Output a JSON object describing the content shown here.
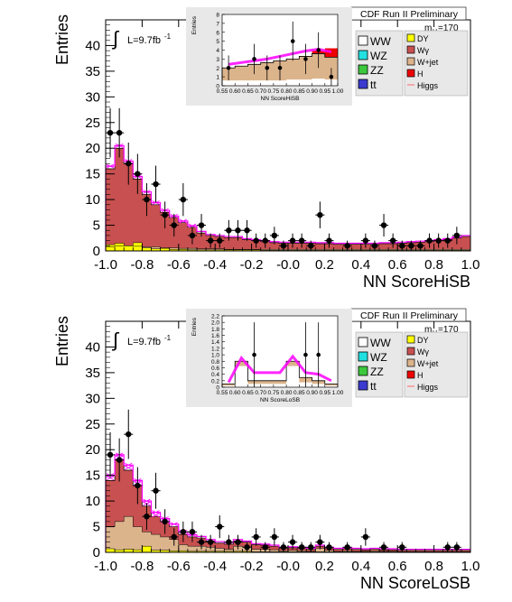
{
  "colors": {
    "WW": "#ffffff",
    "WZ": "#22e0e0",
    "ZZ": "#3cc83c",
    "tt": "#3b3bd0",
    "DY": "#ffff00",
    "Wgamma": "#c85050",
    "Wjet": "#dcb48c",
    "H": "#ee0000",
    "Higgs": "#ff00ff",
    "data": "#000000"
  },
  "chart_data": [
    {
      "type": "histogram",
      "header": "CDF Run II Preliminary",
      "mass_label": "m",
      "mass_sub": "H",
      "mass_value": "=170",
      "lumi": "L=9.7fb",
      "lumi_sup": "-1",
      "integral_symbol": "∫",
      "xlabel": "NN ScoreHiSB",
      "ylabel": "Entries",
      "xlim": [
        -1.0,
        1.0
      ],
      "ylim": [
        0,
        45
      ],
      "x_ticks": [
        "-1.0",
        "-0.8",
        "-0.6",
        "-0.4",
        "-0.2",
        "-0.0",
        "0.2",
        "0.4",
        "0.6",
        "0.8",
        "1.0"
      ],
      "y_ticks": [
        "0",
        "5",
        "10",
        "15",
        "20",
        "25",
        "30",
        "35",
        "40"
      ],
      "legend_left": [
        "WW",
        "WZ",
        "ZZ",
        "tt"
      ],
      "legend_right": [
        "DY",
        "Wγ",
        "W+jet",
        "H",
        "Higgs"
      ],
      "bin_width": 0.05,
      "bins_x": [
        -1.0,
        -0.95,
        -0.9,
        -0.85,
        -0.8,
        -0.75,
        -0.7,
        -0.65,
        -0.6,
        -0.55,
        -0.5,
        -0.45,
        -0.4,
        -0.35,
        -0.3,
        -0.25,
        -0.2,
        -0.15,
        -0.1,
        -0.05,
        0.0,
        0.05,
        0.1,
        0.15,
        0.2,
        0.25,
        0.3,
        0.35,
        0.4,
        0.45,
        0.5,
        0.55,
        0.6,
        0.65,
        0.7,
        0.75,
        0.8,
        0.85,
        0.9,
        0.95
      ],
      "stack_total": [
        16,
        20,
        17,
        14,
        11,
        9,
        7.5,
        6.5,
        5.5,
        4.6,
        3.5,
        3,
        2.8,
        2.6,
        2.6,
        2.2,
        2,
        1.8,
        1.6,
        1.5,
        1.5,
        1.5,
        1.5,
        1.4,
        1.4,
        1.3,
        1.3,
        1.3,
        1.3,
        1.3,
        1.4,
        1.4,
        1.5,
        1.6,
        1.7,
        1.8,
        2,
        2.2,
        2.5,
        2.8
      ],
      "stack_wjet": [
        0.8,
        1.0,
        1.0,
        0.9,
        0.8,
        0.8,
        0.6,
        0.6,
        0.5,
        0.5,
        0.4,
        0.4,
        0.4,
        0.3,
        0.3,
        0.3,
        0.3,
        0.3,
        0.3,
        0.3,
        0.3,
        0.3,
        0.3,
        0.3,
        0.3,
        0.3,
        0.3,
        0.3,
        0.3,
        0.3,
        0.3,
        0.3,
        0.3,
        0.3,
        0.3,
        0.3,
        0.3,
        0.3,
        0.3,
        0.3
      ],
      "stack_dy": [
        1.2,
        1.5,
        1.0,
        1.6,
        0.6,
        0.4,
        0.5,
        0.3,
        0.3,
        0.2,
        0.2,
        0.2,
        0.2,
        0.2,
        0.2,
        0.2,
        0.2,
        0.1,
        0.1,
        0.1,
        0.1,
        0.1,
        0.1,
        0.1,
        0.1,
        0.1,
        0.1,
        0.1,
        0.1,
        0.1,
        0.1,
        0.1,
        0.1,
        0.1,
        0.1,
        0.1,
        0.1,
        0.1,
        0.1,
        0.1
      ],
      "higgs": [
        16.5,
        20.5,
        17.5,
        14.5,
        11.5,
        9.4,
        7.9,
        6.8,
        5.8,
        4.9,
        3.8,
        3.2,
        3,
        2.8,
        2.8,
        2.4,
        2.2,
        2,
        1.8,
        1.7,
        1.7,
        1.7,
        1.7,
        1.6,
        1.6,
        1.5,
        1.5,
        1.5,
        1.5,
        1.5,
        1.6,
        1.6,
        1.7,
        1.8,
        1.9,
        2.0,
        2.2,
        2.4,
        2.7,
        3.0
      ],
      "data_points": [
        {
          "x": -0.975,
          "y": 23,
          "err": 4.8
        },
        {
          "x": -0.925,
          "y": 23,
          "err": 4.8
        },
        {
          "x": -0.875,
          "y": 17,
          "err": 4.1
        },
        {
          "x": -0.825,
          "y": 15,
          "err": 3.9
        },
        {
          "x": -0.775,
          "y": 10,
          "err": 3.2
        },
        {
          "x": -0.725,
          "y": 13,
          "err": 3.6
        },
        {
          "x": -0.675,
          "y": 7,
          "err": 2.6
        },
        {
          "x": -0.625,
          "y": 5,
          "err": 2.2
        },
        {
          "x": -0.575,
          "y": 10,
          "err": 3.2
        },
        {
          "x": -0.525,
          "y": 3,
          "err": 1.7
        },
        {
          "x": -0.475,
          "y": 5,
          "err": 2.2
        },
        {
          "x": -0.425,
          "y": 2,
          "err": 1.4
        },
        {
          "x": -0.375,
          "y": 2,
          "err": 1.4
        },
        {
          "x": -0.325,
          "y": 4,
          "err": 2.0
        },
        {
          "x": -0.275,
          "y": 4,
          "err": 2.0
        },
        {
          "x": -0.225,
          "y": 4,
          "err": 2.0
        },
        {
          "x": -0.175,
          "y": 2,
          "err": 1.4
        },
        {
          "x": -0.125,
          "y": 2,
          "err": 1.4
        },
        {
          "x": -0.075,
          "y": 3,
          "err": 1.7
        },
        {
          "x": -0.025,
          "y": 1,
          "err": 1.0
        },
        {
          "x": 0.025,
          "y": 2,
          "err": 1.4
        },
        {
          "x": 0.075,
          "y": 2,
          "err": 1.4
        },
        {
          "x": 0.125,
          "y": 1,
          "err": 1.0
        },
        {
          "x": 0.175,
          "y": 7,
          "err": 2.6
        },
        {
          "x": 0.225,
          "y": 2,
          "err": 1.4
        },
        {
          "x": 0.325,
          "y": 1,
          "err": 1.0
        },
        {
          "x": 0.425,
          "y": 2,
          "err": 1.4
        },
        {
          "x": 0.475,
          "y": 1,
          "err": 1.0
        },
        {
          "x": 0.525,
          "y": 5,
          "err": 2.2
        },
        {
          "x": 0.575,
          "y": 2,
          "err": 1.4
        },
        {
          "x": 0.625,
          "y": 1,
          "err": 1.0
        },
        {
          "x": 0.675,
          "y": 1,
          "err": 1.0
        },
        {
          "x": 0.725,
          "y": 1,
          "err": 1.0
        },
        {
          "x": 0.775,
          "y": 2,
          "err": 1.4
        },
        {
          "x": 0.825,
          "y": 2,
          "err": 1.4
        },
        {
          "x": 0.875,
          "y": 2,
          "err": 1.4
        },
        {
          "x": 0.925,
          "y": 3,
          "err": 1.7
        }
      ],
      "inset": {
        "xlabel": "NN ScoreHiSB",
        "ylabel": "Entries",
        "xlim": [
          0.55,
          1.0
        ],
        "ylim": [
          0,
          8
        ],
        "x_ticks": [
          "0.55",
          "0.60",
          "0.65",
          "0.70",
          "0.75",
          "0.80",
          "0.85",
          "0.90",
          "0.95",
          "1.00"
        ],
        "y_ticks": [
          "0",
          "1",
          "2",
          "3",
          "4",
          "5",
          "6",
          "7",
          "8"
        ],
        "bins_x": [
          0.55,
          0.6,
          0.65,
          0.7,
          0.75,
          0.8,
          0.85,
          0.9,
          0.95
        ],
        "stack_total": [
          2.0,
          2.2,
          2.4,
          2.6,
          2.8,
          3.0,
          3.3,
          3.6,
          3.2
        ],
        "stack_wjet": [
          0.6,
          0.6,
          0.6,
          0.6,
          0.6,
          0.7,
          0.7,
          0.8,
          0.7
        ],
        "higgs": [
          2.4,
          2.6,
          2.8,
          3.0,
          3.3,
          3.6,
          3.9,
          4.1,
          3.8
        ],
        "red_top": [
          0,
          0,
          0,
          0,
          0,
          0,
          0,
          0.3,
          1.0
        ],
        "data_points": [
          {
            "x": 0.575,
            "y": 2,
            "err": 1.4
          },
          {
            "x": 0.675,
            "y": 3,
            "err": 1.7
          },
          {
            "x": 0.725,
            "y": 2,
            "err": 1.4
          },
          {
            "x": 0.775,
            "y": 2,
            "err": 1.4
          },
          {
            "x": 0.825,
            "y": 5,
            "err": 2.2
          },
          {
            "x": 0.875,
            "y": 3,
            "err": 1.7
          },
          {
            "x": 0.925,
            "y": 4,
            "err": 2.0
          },
          {
            "x": 0.975,
            "y": 1,
            "err": 1.0
          }
        ]
      }
    },
    {
      "type": "histogram",
      "header": "CDF Run II Preliminary",
      "mass_label": "m",
      "mass_sub": "H",
      "mass_value": "=170",
      "lumi": "L=9.7fb",
      "lumi_sup": "-1",
      "integral_symbol": "∫",
      "xlabel": "NN ScoreLoSB",
      "ylabel": "Entries",
      "xlim": [
        -1.0,
        1.0
      ],
      "ylim": [
        0,
        45
      ],
      "x_ticks": [
        "-1.0",
        "-0.8",
        "-0.6",
        "-0.4",
        "-0.2",
        "-0.0",
        "0.2",
        "0.4",
        "0.6",
        "0.8",
        "1.0"
      ],
      "y_ticks": [
        "0",
        "5",
        "10",
        "15",
        "20",
        "25",
        "30",
        "35",
        "40"
      ],
      "legend_left": [
        "WW",
        "WZ",
        "ZZ",
        "tt"
      ],
      "legend_right": [
        "DY",
        "Wγ",
        "W+jet",
        "H",
        "Higgs"
      ],
      "bin_width": 0.05,
      "bins_x": [
        -1.0,
        -0.95,
        -0.9,
        -0.85,
        -0.8,
        -0.75,
        -0.7,
        -0.65,
        -0.6,
        -0.55,
        -0.5,
        -0.45,
        -0.4,
        -0.35,
        -0.3,
        -0.25,
        -0.2,
        -0.15,
        -0.1,
        -0.05,
        0.0,
        0.05,
        0.1,
        0.15,
        0.2,
        0.25,
        0.3,
        0.35,
        0.4,
        0.45,
        0.5,
        0.55,
        0.6,
        0.65,
        0.7,
        0.75,
        0.8,
        0.85,
        0.9,
        0.95
      ],
      "stack_total": [
        14,
        18,
        16,
        13,
        9,
        7,
        6,
        5,
        3.5,
        3,
        2.8,
        2.2,
        1.8,
        1.6,
        2.2,
        2,
        1.5,
        1.4,
        1.2,
        0.8,
        0.9,
        0.8,
        0.6,
        1.2,
        0.8,
        0.6,
        0.7,
        0.6,
        0.5,
        0.6,
        0.5,
        0.5,
        0.4,
        0.4,
        0.4,
        0.4,
        0.4,
        0.4,
        0.4,
        0.4
      ],
      "stack_wjet": [
        5,
        6,
        7,
        5,
        4,
        3.5,
        3,
        2.5,
        1.5,
        1.2,
        1.2,
        1,
        0.8,
        0.6,
        1.2,
        1,
        0.6,
        0.6,
        0.5,
        0.3,
        0.4,
        0.3,
        0.2,
        0.8,
        0.4,
        0.2,
        0.3,
        0.2,
        0.2,
        0.3,
        0.2,
        0.2,
        0.1,
        0.1,
        0.1,
        0.1,
        0.1,
        0.1,
        0.1,
        0.1
      ],
      "stack_dy": [
        0.7,
        0.5,
        0.6,
        0.5,
        1.2,
        0.4,
        0.4,
        0.3,
        0.3,
        0.2,
        0.2,
        0.2,
        0.2,
        0.2,
        0.2,
        0.2,
        0.1,
        0.1,
        0.1,
        0.1,
        0.1,
        0.1,
        0.1,
        0.1,
        0.1,
        0.1,
        0.1,
        0.1,
        0.1,
        0.1,
        0.1,
        0.1,
        0.1,
        0.1,
        0.1,
        0.1,
        0.1,
        0.1,
        0.1,
        0.1
      ],
      "higgs": [
        15,
        19,
        17,
        14,
        10,
        7.8,
        6.6,
        5.5,
        4,
        3.4,
        3.1,
        2.5,
        2.1,
        1.9,
        2.5,
        2.2,
        1.7,
        1.6,
        1.4,
        1,
        1.1,
        1,
        0.8,
        1.4,
        1,
        0.8,
        0.9,
        0.8,
        0.7,
        0.8,
        0.7,
        0.7,
        0.6,
        0.6,
        0.6,
        0.6,
        0.6,
        0.6,
        0.6,
        0.6
      ],
      "data_points": [
        {
          "x": -0.975,
          "y": 19,
          "err": 4.4
        },
        {
          "x": -0.925,
          "y": 18,
          "err": 4.2
        },
        {
          "x": -0.875,
          "y": 23,
          "err": 4.8
        },
        {
          "x": -0.825,
          "y": 13,
          "err": 3.6
        },
        {
          "x": -0.775,
          "y": 7,
          "err": 2.6
        },
        {
          "x": -0.725,
          "y": 12,
          "err": 3.5
        },
        {
          "x": -0.675,
          "y": 6,
          "err": 2.4
        },
        {
          "x": -0.625,
          "y": 3,
          "err": 1.7
        },
        {
          "x": -0.575,
          "y": 4,
          "err": 2.0
        },
        {
          "x": -0.525,
          "y": 4,
          "err": 2.0
        },
        {
          "x": -0.475,
          "y": 2,
          "err": 1.4
        },
        {
          "x": -0.425,
          "y": 2,
          "err": 1.4
        },
        {
          "x": -0.375,
          "y": 5,
          "err": 2.2
        },
        {
          "x": -0.325,
          "y": 2,
          "err": 1.4
        },
        {
          "x": -0.275,
          "y": 2,
          "err": 1.4
        },
        {
          "x": -0.225,
          "y": 1,
          "err": 1.0
        },
        {
          "x": -0.175,
          "y": 3,
          "err": 1.7
        },
        {
          "x": -0.125,
          "y": 1,
          "err": 1.0
        },
        {
          "x": -0.075,
          "y": 3,
          "err": 1.7
        },
        {
          "x": -0.025,
          "y": 1,
          "err": 1.0
        },
        {
          "x": 0.025,
          "y": 2,
          "err": 1.4
        },
        {
          "x": 0.075,
          "y": 1,
          "err": 1.0
        },
        {
          "x": 0.125,
          "y": 1,
          "err": 1.0
        },
        {
          "x": 0.175,
          "y": 2,
          "err": 1.4
        },
        {
          "x": 0.225,
          "y": 1,
          "err": 1.0
        },
        {
          "x": 0.325,
          "y": 1,
          "err": 1.0
        },
        {
          "x": 0.425,
          "y": 3,
          "err": 1.7
        },
        {
          "x": 0.525,
          "y": 1,
          "err": 1.0
        },
        {
          "x": 0.625,
          "y": 1,
          "err": 1.0
        },
        {
          "x": 0.875,
          "y": 1,
          "err": 1.0
        },
        {
          "x": 0.925,
          "y": 1,
          "err": 1.0
        }
      ],
      "inset": {
        "xlabel": "NN ScoreLoSB",
        "ylabel": "Entries",
        "xlim": [
          0.55,
          1.0
        ],
        "ylim": [
          0,
          2.2
        ],
        "x_ticks": [
          "0.55",
          "0.60",
          "0.65",
          "0.70",
          "0.75",
          "0.80",
          "0.85",
          "0.90",
          "0.95",
          "1.00"
        ],
        "y_ticks": [
          "0",
          "0.2",
          "0.4",
          "0.6",
          "0.8",
          "1.0",
          "1.2",
          "1.4",
          "1.6",
          "1.8",
          "2.0",
          "2.2"
        ],
        "bins_x": [
          0.55,
          0.6,
          0.65,
          0.7,
          0.75,
          0.8,
          0.85,
          0.9,
          0.95
        ],
        "stack_total": [
          0.1,
          0.8,
          0.2,
          0.2,
          0.2,
          0.8,
          0.3,
          0.2,
          0.1
        ],
        "stack_wjet": [
          0.05,
          0.65,
          0.1,
          0.1,
          0.1,
          0.65,
          0.15,
          0.1,
          0.05
        ],
        "higgs": [
          0.15,
          0.9,
          0.45,
          0.45,
          0.45,
          0.95,
          0.45,
          0.4,
          0.2
        ],
        "red_top": [
          0,
          0,
          0,
          0,
          0,
          0,
          0,
          0,
          0
        ],
        "data_points": [
          {
            "x": 0.675,
            "y": 1,
            "err": 1.0
          },
          {
            "x": 0.875,
            "y": 1,
            "err": 1.0
          },
          {
            "x": 0.925,
            "y": 1,
            "err": 1.0
          }
        ]
      }
    }
  ]
}
